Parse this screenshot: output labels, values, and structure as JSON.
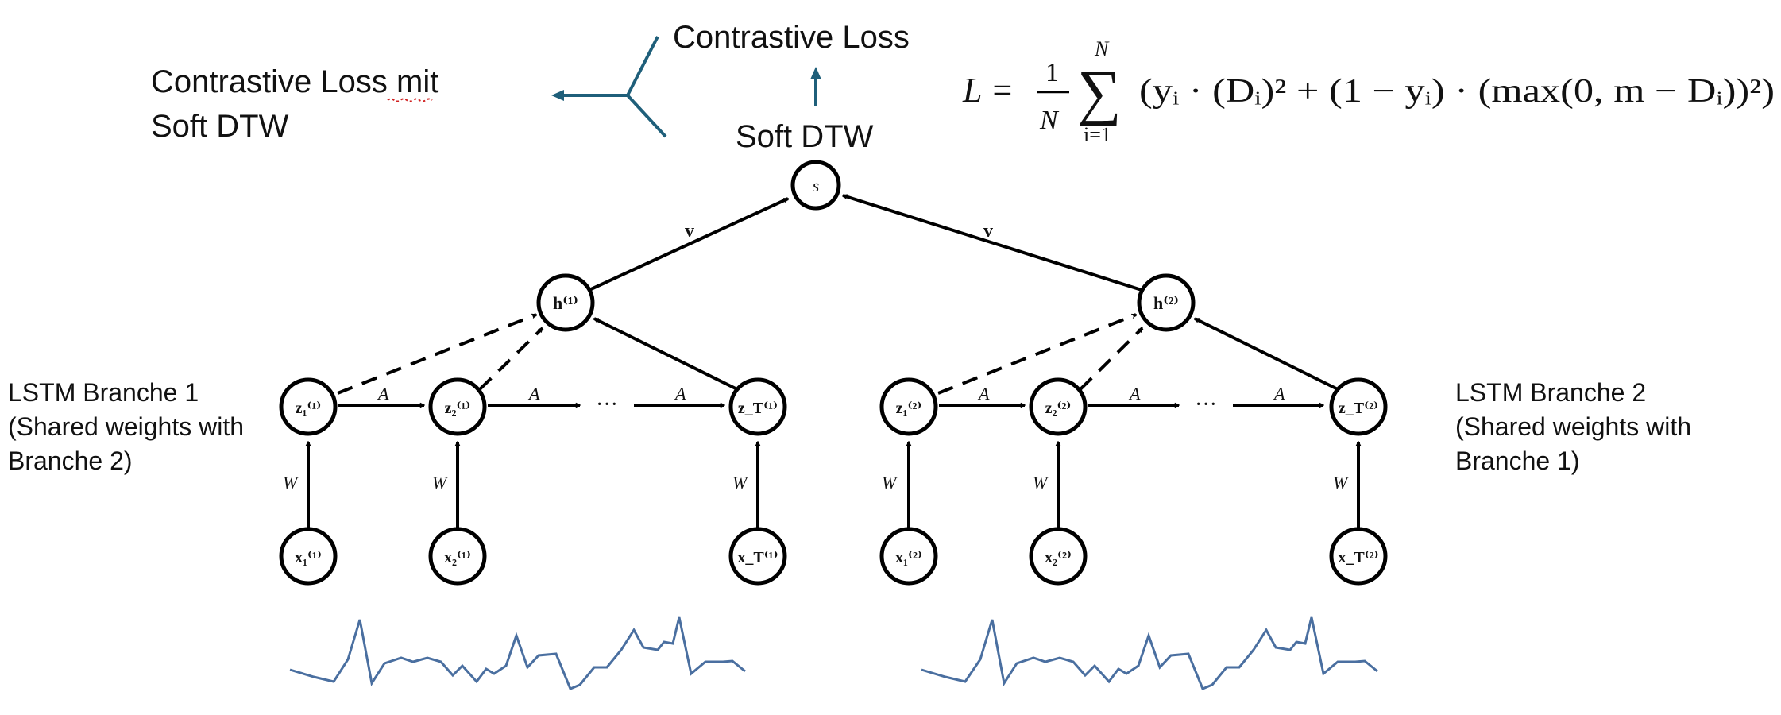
{
  "side_labels": {
    "left_title_line1": "Contrastive Loss mit",
    "left_title_line2": "Soft DTW",
    "top_loss": "Contrastive Loss",
    "soft_dtw": "Soft DTW",
    "branch1_line1": "LSTM Branche 1",
    "branch1_line2": "(Shared weights with",
    "branch1_line3": "Branche 2)",
    "branch2_line1": "LSTM Branche 2",
    "branch2_line2": "(Shared weights with",
    "branch2_line3": "Branche 1)"
  },
  "formula": {
    "lhs": "L =",
    "frac_num": "1",
    "frac_den": "N",
    "sum_top": "N",
    "sum_bottom": "i=1",
    "sum_symbol": "∑",
    "body": "(yᵢ · (Dᵢ)² + (1 − yᵢ) · (max(0, m − Dᵢ))²)"
  },
  "nodes": {
    "s": "s",
    "h1": "h⁽¹⁾",
    "h2": "h⁽²⁾",
    "z1_1": "z₁⁽¹⁾",
    "z2_1": "z₂⁽¹⁾",
    "zT_1": "z_T⁽¹⁾",
    "z1_2": "z₁⁽²⁾",
    "z2_2": "z₂⁽²⁾",
    "zT_2": "z_T⁽²⁾",
    "x1_1": "x₁⁽¹⁾",
    "x2_1": "x₂⁽¹⁾",
    "xT_1": "x_T⁽¹⁾",
    "x1_2": "x₁⁽²⁾",
    "x2_2": "x₂⁽²⁾",
    "xT_2": "x_T⁽²⁾"
  },
  "edge_labels": {
    "v": "v",
    "A": "A",
    "W": "W",
    "ellipsis": "···"
  },
  "colors": {
    "arrow_accent": "#1f5f7a",
    "signal": "#4a6fa0"
  }
}
